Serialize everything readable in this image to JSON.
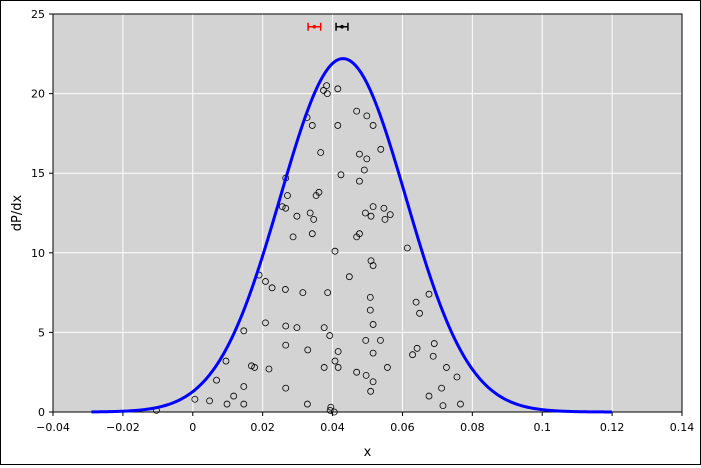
{
  "chart_data": {
    "type": "scatter",
    "xlabel": "x",
    "ylabel": "dP/dx",
    "xlim": [
      -0.04,
      0.14
    ],
    "ylim": [
      0,
      25
    ],
    "grid": true,
    "background_color": "#d3d3d3",
    "xticks": [
      "−0.04",
      "−0.02",
      "0",
      "0.02",
      "0.04",
      "0.06",
      "0.08",
      "0.1",
      "0.12",
      "0.14"
    ],
    "xtick_values": [
      -0.04,
      -0.02,
      0,
      0.02,
      0.04,
      0.06,
      0.08,
      0.1,
      0.12,
      0.14
    ],
    "yticks": [
      "0",
      "5",
      "10",
      "15",
      "20",
      "25"
    ],
    "ytick_values": [
      0,
      5,
      10,
      15,
      20,
      25
    ],
    "curve": {
      "type": "gaussian",
      "color": "#0000ff",
      "mean": 0.043,
      "sigma": 0.018,
      "peak": 22.2,
      "x_range": [
        -0.029,
        0.12
      ]
    },
    "error_bars": [
      {
        "color": "#ff0000",
        "center": 0.0348,
        "low": 0.033,
        "high": 0.0366,
        "y": 24.2
      },
      {
        "color": "#000000",
        "center": 0.0427,
        "low": 0.041,
        "high": 0.0444,
        "y": 24.2
      }
    ],
    "points": [
      [
        0.0383,
        20.5
      ],
      [
        0.0415,
        20.3
      ],
      [
        0.0374,
        20.2
      ],
      [
        0.0385,
        20.0
      ],
      [
        0.0327,
        18.5
      ],
      [
        0.0469,
        18.9
      ],
      [
        0.0498,
        18.6
      ],
      [
        0.0342,
        18.0
      ],
      [
        0.0415,
        18.0
      ],
      [
        0.0516,
        18.0
      ],
      [
        0.0366,
        16.3
      ],
      [
        0.0538,
        16.5
      ],
      [
        0.0477,
        16.2
      ],
      [
        0.0498,
        15.9
      ],
      [
        0.0424,
        14.9
      ],
      [
        0.0491,
        15.2
      ],
      [
        0.0266,
        14.7
      ],
      [
        0.0477,
        14.5
      ],
      [
        0.0271,
        13.6
      ],
      [
        0.0361,
        13.8
      ],
      [
        0.0353,
        13.6
      ],
      [
        0.0256,
        12.9
      ],
      [
        0.0266,
        12.8
      ],
      [
        0.0547,
        12.8
      ],
      [
        0.0516,
        12.9
      ],
      [
        0.0336,
        12.5
      ],
      [
        0.0298,
        12.3
      ],
      [
        0.0494,
        12.5
      ],
      [
        0.0565,
        12.4
      ],
      [
        0.051,
        12.3
      ],
      [
        0.0346,
        12.1
      ],
      [
        0.055,
        12.1
      ],
      [
        0.0342,
        11.2
      ],
      [
        0.0287,
        11.0
      ],
      [
        0.0477,
        11.2
      ],
      [
        0.0469,
        11.0
      ],
      [
        0.0614,
        10.3
      ],
      [
        0.0407,
        10.1
      ],
      [
        0.051,
        9.5
      ],
      [
        0.0516,
        9.2
      ],
      [
        0.0448,
        8.5
      ],
      [
        0.019,
        8.6
      ],
      [
        0.0208,
        8.2
      ],
      [
        0.0227,
        7.8
      ],
      [
        0.0265,
        7.7
      ],
      [
        0.0315,
        7.5
      ],
      [
        0.0386,
        7.5
      ],
      [
        0.0676,
        7.4
      ],
      [
        0.0508,
        7.2
      ],
      [
        0.0639,
        6.9
      ],
      [
        0.0508,
        6.4
      ],
      [
        0.0649,
        6.2
      ],
      [
        0.0208,
        5.6
      ],
      [
        0.0266,
        5.4
      ],
      [
        0.0298,
        5.3
      ],
      [
        0.0376,
        5.3
      ],
      [
        0.0516,
        5.5
      ],
      [
        0.0146,
        5.1
      ],
      [
        0.0392,
        4.8
      ],
      [
        0.0495,
        4.5
      ],
      [
        0.0537,
        4.5
      ],
      [
        0.0691,
        4.3
      ],
      [
        0.0266,
        4.2
      ],
      [
        0.0642,
        4.0
      ],
      [
        0.0329,
        3.9
      ],
      [
        0.0416,
        3.8
      ],
      [
        0.0516,
        3.7
      ],
      [
        0.0629,
        3.6
      ],
      [
        0.0688,
        3.5
      ],
      [
        0.0095,
        3.2
      ],
      [
        0.0407,
        3.2
      ],
      [
        0.0168,
        2.9
      ],
      [
        0.0177,
        2.8
      ],
      [
        0.0218,
        2.7
      ],
      [
        0.0376,
        2.8
      ],
      [
        0.0416,
        2.8
      ],
      [
        0.0557,
        2.8
      ],
      [
        0.0726,
        2.8
      ],
      [
        0.0469,
        2.5
      ],
      [
        0.0496,
        2.3
      ],
      [
        0.0756,
        2.2
      ],
      [
        0.0068,
        2.0
      ],
      [
        0.0516,
        1.9
      ],
      [
        0.0146,
        1.6
      ],
      [
        0.0266,
        1.5
      ],
      [
        0.0712,
        1.5
      ],
      [
        0.0509,
        1.3
      ],
      [
        0.0117,
        1.0
      ],
      [
        0.0676,
        1.0
      ],
      [
        0.0006,
        0.8
      ],
      [
        0.0048,
        0.7
      ],
      [
        0.0098,
        0.5
      ],
      [
        0.0146,
        0.5
      ],
      [
        0.0328,
        0.5
      ],
      [
        0.0766,
        0.5
      ],
      [
        0.0716,
        0.4
      ],
      [
        0.0395,
        0.3
      ],
      [
        0.0393,
        0.1
      ],
      [
        0.0405,
        0.0
      ],
      [
        -0.0104,
        0.1
      ]
    ]
  }
}
